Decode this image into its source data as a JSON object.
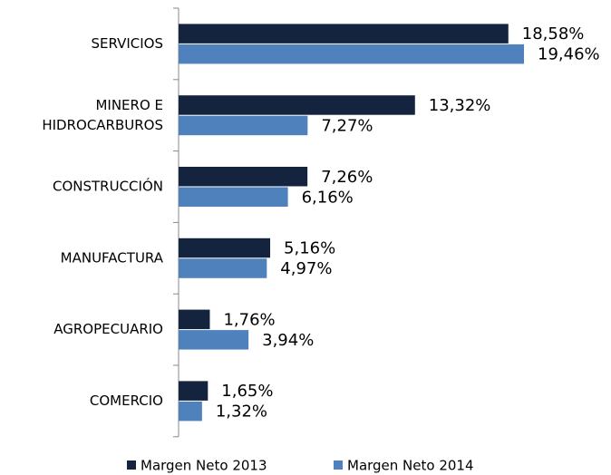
{
  "chart_data": {
    "type": "bar",
    "orientation": "horizontal",
    "categories": [
      "SERVICIOS",
      "MINERO E HIDROCARBUROS",
      "CONSTRUCCIÓN",
      "MANUFACTURA",
      "AGROPECUARIO",
      "COMERCIO"
    ],
    "series": [
      {
        "name": "Margen Neto 2013",
        "color": "#14243f",
        "values": [
          18.58,
          13.32,
          7.26,
          5.16,
          1.76,
          1.65
        ],
        "value_labels": [
          "18,58%",
          "13,32%",
          "7,26%",
          "5,16%",
          "1,76%",
          "1,65%"
        ]
      },
      {
        "name": "Margen Neto 2014",
        "color": "#4f81bd",
        "values": [
          19.46,
          7.27,
          6.16,
          4.97,
          3.94,
          1.32
        ],
        "value_labels": [
          "19,46%",
          "7,27%",
          "6,16%",
          "4,97%",
          "3,94%",
          "1,32%"
        ]
      }
    ],
    "legend": "bottom"
  }
}
